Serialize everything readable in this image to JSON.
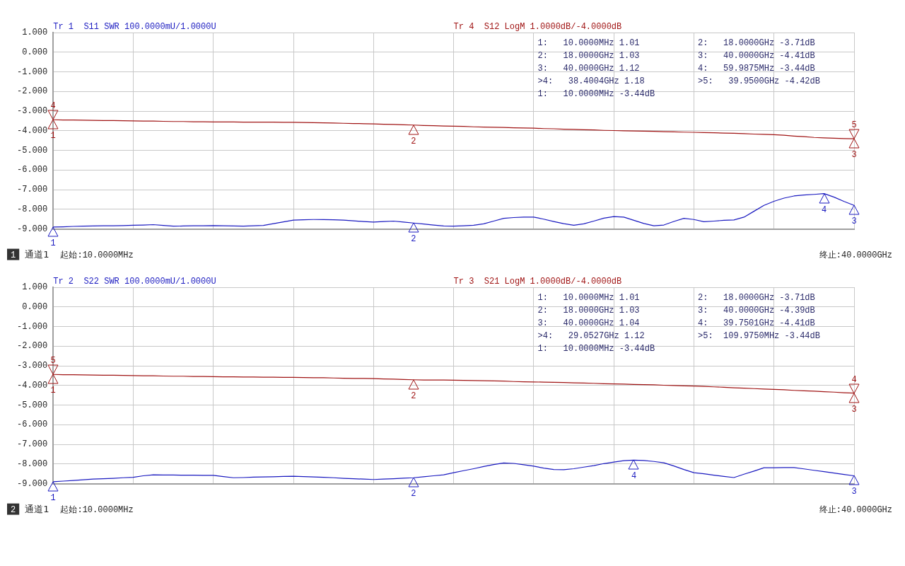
{
  "chart_data": [
    {
      "type": "line",
      "grid": true,
      "xlabel": "通道1",
      "ylim": [
        -9,
        1
      ],
      "categories": [
        null,
        null,
        null,
        null,
        null,
        null,
        null,
        null,
        null,
        null,
        null,
        null,
        null,
        null,
        null,
        null,
        null,
        null,
        null,
        null,
        null,
        null,
        null,
        null,
        null,
        null,
        null,
        null,
        null,
        null,
        null,
        null,
        null,
        null,
        null,
        null,
        null,
        null,
        null,
        null,
        null,
        null,
        null,
        null,
        null,
        null,
        null,
        null,
        null,
        null,
        null,
        null,
        null,
        null,
        null,
        null,
        null,
        null,
        null,
        null,
        null,
        null,
        null,
        null,
        null,
        null,
        null,
        null,
        null,
        null,
        null,
        null,
        null,
        null,
        null,
        null,
        null,
        null,
        null,
        null,
        null
      ],
      "yticks": [
        {
          "value": 1,
          "label": "1.000"
        },
        {
          "value": 0,
          "label": "0.000"
        },
        {
          "value": -1,
          "label": "-1.000"
        },
        {
          "value": -2,
          "label": "-2.000"
        },
        {
          "value": -3,
          "label": "-3.000"
        },
        {
          "value": -4,
          "label": "-4.000"
        },
        {
          "value": -5,
          "label": "-5.000"
        },
        {
          "value": -6,
          "label": "-6.000"
        },
        {
          "value": -7,
          "label": "-7.000"
        },
        {
          "value": -8,
          "label": "-8.000"
        },
        {
          "value": -9,
          "label": "-9.000"
        }
      ],
      "series": [
        {
          "name": "Tr 1  S11 SWR 100.0000mU/1.0000U",
          "color": "#1a1ac0",
          "values": [
            -8.9,
            -8.89,
            -8.87,
            -8.86,
            -8.85,
            -8.84,
            -8.84,
            -8.83,
            -8.81,
            -8.8,
            -8.78,
            -8.82,
            -8.86,
            -8.85,
            -8.84,
            -8.84,
            -8.83,
            -8.84,
            -8.85,
            -8.86,
            -8.84,
            -8.82,
            -8.73,
            -8.64,
            -8.55,
            -8.53,
            -8.52,
            -8.52,
            -8.53,
            -8.55,
            -8.59,
            -8.62,
            -8.65,
            -8.62,
            -8.6,
            -8.65,
            -8.7,
            -8.75,
            -8.8,
            -8.85,
            -8.86,
            -8.84,
            -8.81,
            -8.74,
            -8.6,
            -8.46,
            -8.42,
            -8.4,
            -8.4,
            -8.5,
            -8.62,
            -8.73,
            -8.81,
            -8.74,
            -8.6,
            -8.45,
            -8.37,
            -8.4,
            -8.56,
            -8.72,
            -8.84,
            -8.8,
            -8.62,
            -8.46,
            -8.52,
            -8.63,
            -8.6,
            -8.56,
            -8.54,
            -8.4,
            -8.1,
            -7.8,
            -7.59,
            -7.43,
            -7.32,
            -7.27,
            -7.24,
            -7.2,
            -7.38,
            -7.6,
            -7.8
          ]
        },
        {
          "name": "Tr 4  S12 LogM 1.0000dB/-4.0000dB",
          "color": "#a01414",
          "values": [
            -3.44,
            -3.45,
            -3.45,
            -3.46,
            -3.47,
            -3.48,
            -3.48,
            -3.49,
            -3.5,
            -3.51,
            -3.51,
            -3.52,
            -3.53,
            -3.53,
            -3.54,
            -3.54,
            -3.55,
            -3.55,
            -3.55,
            -3.56,
            -3.56,
            -3.56,
            -3.56,
            -3.57,
            -3.57,
            -3.58,
            -3.59,
            -3.6,
            -3.61,
            -3.62,
            -3.63,
            -3.64,
            -3.65,
            -3.67,
            -3.68,
            -3.7,
            -3.71,
            -3.73,
            -3.74,
            -3.76,
            -3.77,
            -3.78,
            -3.8,
            -3.81,
            -3.82,
            -3.83,
            -3.85,
            -3.86,
            -3.87,
            -3.89,
            -3.9,
            -3.92,
            -3.93,
            -3.95,
            -3.96,
            -3.98,
            -3.99,
            -4.0,
            -4.01,
            -4.02,
            -4.03,
            -4.05,
            -4.06,
            -4.07,
            -4.08,
            -4.09,
            -4.1,
            -4.12,
            -4.13,
            -4.15,
            -4.17,
            -4.18,
            -4.2,
            -4.23,
            -4.27,
            -4.3,
            -4.34,
            -4.36,
            -4.38,
            -4.4,
            -4.41
          ]
        }
      ],
      "annotations": [
        "1",
        "起始:10.0000MHz",
        "终止:40.0000GHz",
        "1:   10.0000MHz 1.01",
        "2:   18.0000GHz 1.03",
        "3:   40.0000GHz 1.12",
        ">4:   38.4004GHz 1.18",
        "1:   10.0000MHz -3.44dB",
        "2:   18.0000GHz -3.71dB",
        "3:   40.0000GHz -4.41dB",
        "4:   59.9875MHz -3.44dB",
        ">5:   39.9500GHz -4.42dB",
        {
          "text": "1",
          "y": -8.9
        },
        {
          "text": "2",
          "y": -8.7
        },
        {
          "text": "3",
          "y": -7.8
        },
        {
          "text": "4",
          "y": -7.2
        },
        {
          "text": "1",
          "y": -3.44
        },
        {
          "text": "2",
          "y": -3.71
        },
        {
          "text": "3",
          "y": -4.41
        },
        {
          "text": "4",
          "y": -3.44
        },
        {
          "text": "5",
          "y": -4.42
        }
      ]
    },
    {
      "type": "line",
      "grid": true,
      "xlabel": "通道1",
      "ylim": [
        -9,
        1
      ],
      "categories": [
        null,
        null,
        null,
        null,
        null,
        null,
        null,
        null,
        null,
        null,
        null,
        null,
        null,
        null,
        null,
        null,
        null,
        null,
        null,
        null,
        null,
        null,
        null,
        null,
        null,
        null,
        null,
        null,
        null,
        null,
        null,
        null,
        null,
        null,
        null,
        null,
        null,
        null,
        null,
        null,
        null,
        null,
        null,
        null,
        null,
        null,
        null,
        null,
        null,
        null,
        null,
        null,
        null,
        null,
        null,
        null,
        null,
        null,
        null,
        null,
        null,
        null,
        null,
        null,
        null,
        null,
        null,
        null,
        null,
        null,
        null,
        null,
        null,
        null,
        null,
        null,
        null,
        null,
        null,
        null,
        null
      ],
      "yticks": [
        {
          "value": 1,
          "label": "1.000"
        },
        {
          "value": 0,
          "label": "0.000"
        },
        {
          "value": -1,
          "label": "-1.000"
        },
        {
          "value": -2,
          "label": "-2.000"
        },
        {
          "value": -3,
          "label": "-3.000"
        },
        {
          "value": -4,
          "label": "-4.000"
        },
        {
          "value": -5,
          "label": "-5.000"
        },
        {
          "value": -6,
          "label": "-6.000"
        },
        {
          "value": -7,
          "label": "-7.000"
        },
        {
          "value": -8,
          "label": "-8.000"
        },
        {
          "value": -9,
          "label": "-9.000"
        }
      ],
      "series": [
        {
          "name": "Tr 2  S22 SWR 100.0000mU/1.0000U",
          "color": "#1a1ac0",
          "values": [
            -8.9,
            -8.87,
            -8.84,
            -8.8,
            -8.77,
            -8.75,
            -8.73,
            -8.7,
            -8.68,
            -8.6,
            -8.55,
            -8.56,
            -8.56,
            -8.57,
            -8.57,
            -8.58,
            -8.58,
            -8.64,
            -8.7,
            -8.69,
            -8.67,
            -8.66,
            -8.65,
            -8.63,
            -8.62,
            -8.64,
            -8.66,
            -8.68,
            -8.7,
            -8.73,
            -8.75,
            -8.77,
            -8.79,
            -8.77,
            -8.75,
            -8.72,
            -8.7,
            -8.65,
            -8.6,
            -8.55,
            -8.44,
            -8.34,
            -8.24,
            -8.13,
            -8.03,
            -7.95,
            -7.97,
            -8.04,
            -8.11,
            -8.21,
            -8.28,
            -8.29,
            -8.24,
            -8.16,
            -8.08,
            -7.98,
            -7.9,
            -7.83,
            -7.8,
            -7.82,
            -7.87,
            -7.94,
            -8.1,
            -8.28,
            -8.44,
            -8.5,
            -8.57,
            -8.63,
            -8.69,
            -8.52,
            -8.36,
            -8.19,
            -8.19,
            -8.18,
            -8.18,
            -8.25,
            -8.32,
            -8.39,
            -8.46,
            -8.53,
            -8.6
          ]
        },
        {
          "name": "Tr 3  S21 LogM 1.0000dB/-4.0000dB",
          "color": "#a01414",
          "values": [
            -3.44,
            -3.45,
            -3.45,
            -3.46,
            -3.47,
            -3.48,
            -3.48,
            -3.49,
            -3.5,
            -3.51,
            -3.51,
            -3.52,
            -3.53,
            -3.53,
            -3.54,
            -3.54,
            -3.55,
            -3.56,
            -3.56,
            -3.57,
            -3.57,
            -3.58,
            -3.58,
            -3.59,
            -3.59,
            -3.6,
            -3.61,
            -3.61,
            -3.62,
            -3.63,
            -3.64,
            -3.64,
            -3.65,
            -3.67,
            -3.68,
            -3.7,
            -3.71,
            -3.72,
            -3.72,
            -3.72,
            -3.73,
            -3.74,
            -3.75,
            -3.76,
            -3.77,
            -3.78,
            -3.8,
            -3.81,
            -3.82,
            -3.83,
            -3.84,
            -3.85,
            -3.87,
            -3.88,
            -3.89,
            -3.91,
            -3.92,
            -3.93,
            -3.95,
            -3.96,
            -3.97,
            -3.99,
            -4.0,
            -4.02,
            -4.03,
            -4.05,
            -4.07,
            -4.09,
            -4.12,
            -4.14,
            -4.16,
            -4.18,
            -4.2,
            -4.22,
            -4.25,
            -4.27,
            -4.29,
            -4.32,
            -4.34,
            -4.37,
            -4.39
          ]
        }
      ],
      "annotations": [
        "2",
        "起始:10.0000MHz",
        "终止:40.0000GHz",
        "1:   10.0000MHz 1.01",
        "2:   18.0000GHz 1.03",
        "3:   40.0000GHz 1.04",
        ">4:   29.0527GHz 1.12",
        "1:   10.0000MHz -3.44dB",
        "2:   18.0000GHz -3.71dB",
        "3:   40.0000GHz -4.39dB",
        "4:   39.7501GHz -4.41dB",
        ">5:  109.9750MHz -3.44dB",
        {
          "text": "1",
          "y": -8.9
        },
        {
          "text": "2",
          "y": -8.7
        },
        {
          "text": "3",
          "y": -8.6
        },
        {
          "text": "4",
          "y": -7.8
        },
        {
          "text": "1",
          "y": -3.44
        },
        {
          "text": "2",
          "y": -3.71
        },
        {
          "text": "3",
          "y": -4.39
        },
        {
          "text": "4",
          "y": -4.41
        },
        {
          "text": "5",
          "y": -3.44
        }
      ]
    }
  ]
}
